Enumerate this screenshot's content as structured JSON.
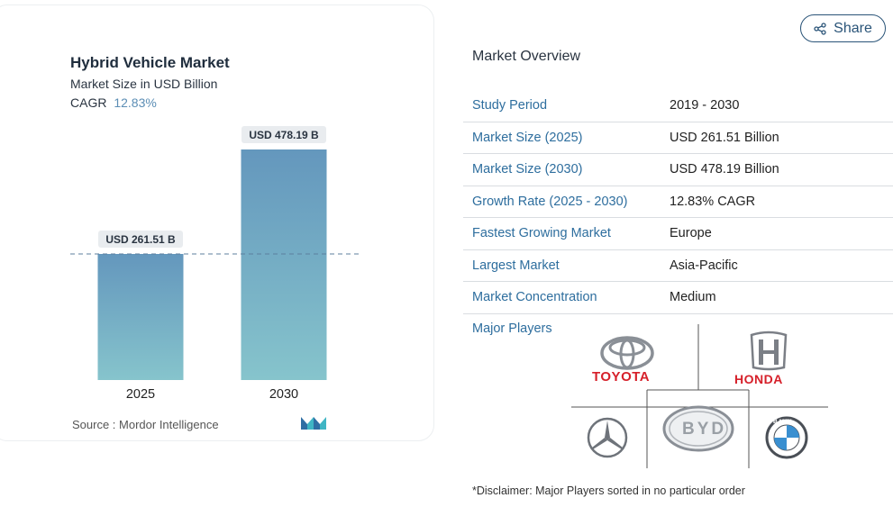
{
  "chart": {
    "title": "Hybrid Vehicle Market",
    "subtitle": "Market Size in USD Billion",
    "cagr_label": "CAGR",
    "cagr_value": "12.83%",
    "source": "Source :  Mordor Intelligence"
  },
  "chart_data": {
    "type": "bar",
    "categories": [
      "2025",
      "2030"
    ],
    "values": [
      261.51,
      478.19
    ],
    "value_labels": [
      "USD 261.51 B",
      "USD 478.19 B"
    ],
    "title": "Hybrid Vehicle Market",
    "subtitle": "Market Size in USD Billion",
    "bar_color_top": "#6497bd",
    "bar_color_bottom": "#86c4cc",
    "reference_line": "dashed line at 2025 value"
  },
  "share": {
    "label": "Share"
  },
  "overview": {
    "title": "Market Overview",
    "rows": [
      {
        "key": "Study Period",
        "value": "2019 - 2030"
      },
      {
        "key": "Market Size (2025)",
        "value": "USD 261.51 Billion"
      },
      {
        "key": "Market Size (2030)",
        "value": "USD 478.19 Billion"
      },
      {
        "key": "Growth Rate (2025 - 2030)",
        "value": "12.83% CAGR"
      },
      {
        "key": "Fastest Growing Market",
        "value": "Europe"
      },
      {
        "key": "Largest Market",
        "value": "Asia-Pacific"
      },
      {
        "key": "Market Concentration",
        "value": "Medium"
      }
    ]
  },
  "players": {
    "label": "Major Players",
    "logos": {
      "toyota": "TOYOTA",
      "honda": "HONDA",
      "byd": "BYD",
      "bmw": "BMW",
      "mercedes": "Mercedes-Benz"
    }
  },
  "disclaimer": "*Disclaimer: Major Players sorted in no particular order"
}
